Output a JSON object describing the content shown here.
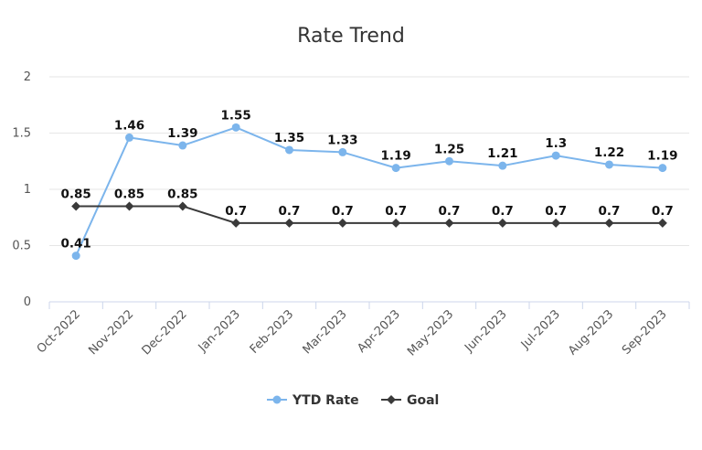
{
  "chart_data": {
    "type": "line",
    "title": "Rate Trend",
    "categories": [
      "Oct-2022",
      "Nov-2022",
      "Dec-2022",
      "Jan-2023",
      "Feb-2023",
      "Mar-2023",
      "Apr-2023",
      "May-2023",
      "Jun-2023",
      "Jul-2023",
      "Aug-2023",
      "Sep-2023"
    ],
    "series": [
      {
        "name": "YTD Rate",
        "color": "#7cb5ec",
        "marker": "circle",
        "values": [
          0.41,
          1.46,
          1.39,
          1.55,
          1.35,
          1.33,
          1.19,
          1.25,
          1.21,
          1.3,
          1.22,
          1.19
        ]
      },
      {
        "name": "Goal",
        "color": "#3a3a3a",
        "marker": "diamond",
        "values": [
          0.85,
          0.85,
          0.85,
          0.7,
          0.7,
          0.7,
          0.7,
          0.7,
          0.7,
          0.7,
          0.7,
          0.7
        ]
      }
    ],
    "yticks": [
      "0",
      "0.5",
      "1",
      "1.5",
      "2"
    ],
    "ylim": [
      0,
      2
    ],
    "xlabel": "",
    "ylabel": "",
    "grid": true,
    "legend": "bottom-center",
    "data_labels": true
  }
}
